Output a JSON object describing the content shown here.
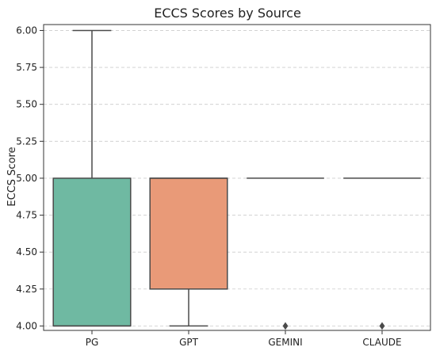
{
  "chart_data": {
    "type": "box",
    "title": "ECCS Scores by Source",
    "xlabel": "",
    "ylabel": "ECCS Score",
    "ylim": [
      3.97,
      6.04
    ],
    "yticks": [
      4.0,
      4.25,
      4.5,
      4.75,
      5.0,
      5.25,
      5.5,
      5.75,
      6.0
    ],
    "ytick_labels": [
      "4.00",
      "4.25",
      "4.50",
      "4.75",
      "5.00",
      "5.25",
      "5.50",
      "5.75",
      "6.00"
    ],
    "grid": "y-dashed",
    "categories": [
      "PG",
      "GPT",
      "GEMINI",
      "CLAUDE"
    ],
    "boxes": [
      {
        "category": "PG",
        "whisker_low": 4.0,
        "q1": 4.0,
        "median": 4.0,
        "q3": 5.0,
        "whisker_high": 6.0,
        "outliers": [],
        "color": "#6FB9A2"
      },
      {
        "category": "GPT",
        "whisker_low": 4.0,
        "q1": 4.25,
        "median": 5.0,
        "q3": 5.0,
        "whisker_high": 5.0,
        "outliers": [],
        "color": "#E99A78"
      },
      {
        "category": "GEMINI",
        "whisker_low": 5.0,
        "q1": 5.0,
        "median": 5.0,
        "q3": 5.0,
        "whisker_high": 5.0,
        "outliers": [
          4.0
        ],
        "color": "#8DA0CB"
      },
      {
        "category": "CLAUDE",
        "whisker_low": 5.0,
        "q1": 5.0,
        "median": 5.0,
        "q3": 5.0,
        "whisker_high": 5.0,
        "outliers": [
          4.0
        ],
        "color": "#E78AC3"
      }
    ],
    "colors": {
      "line": "#4A4A4A",
      "grid": "#CCCCCC",
      "axis": "#333333"
    }
  }
}
